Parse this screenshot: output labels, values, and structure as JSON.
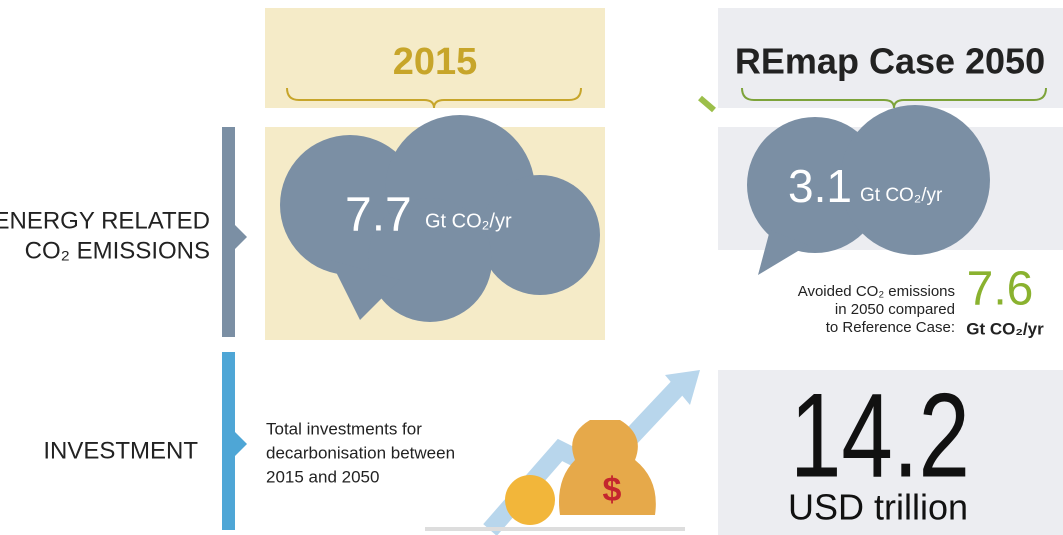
{
  "header": {
    "left": "2015",
    "right": "REmap Case 2050"
  },
  "rows": [
    {
      "label": [
        "ENERGY RELATED",
        "CO₂ EMISSIONS"
      ],
      "left": {
        "value": "7.7",
        "unit": "Gt CO₂/yr"
      },
      "right": {
        "value": "3.1",
        "unit": "Gt CO₂/yr"
      },
      "note": {
        "text": [
          "Avoided CO₂ emissions",
          "in 2050 compared",
          "to Reference Case:"
        ],
        "value": "7.6",
        "unit": "Gt CO₂/yr"
      }
    },
    {
      "label": [
        "INVESTMENT"
      ],
      "left": {
        "text": [
          "Total investments for",
          "decarbonisation between",
          "2015 and 2050"
        ]
      },
      "right": {
        "value": "14.2",
        "unit": "USD trillion"
      }
    }
  ]
}
